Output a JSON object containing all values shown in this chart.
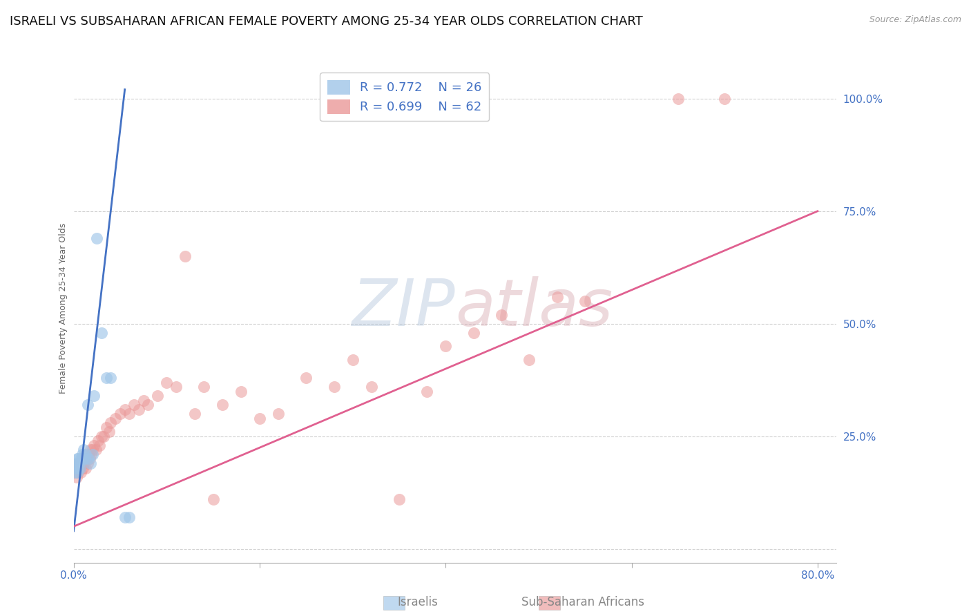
{
  "title": "ISRAELI VS SUBSAHARAN AFRICAN FEMALE POVERTY AMONG 25-34 YEAR OLDS CORRELATION CHART",
  "source": "Source: ZipAtlas.com",
  "ylabel": "Female Poverty Among 25-34 Year Olds",
  "xlim": [
    0.0,
    0.82
  ],
  "ylim": [
    -0.03,
    1.1
  ],
  "background_color": "#ffffff",
  "blue_color": "#9fc5e8",
  "pink_color": "#ea9999",
  "blue_line_color": "#4472c4",
  "pink_line_color": "#e06090",
  "tick_color": "#4472c4",
  "title_fontsize": 13,
  "axis_label_fontsize": 9,
  "tick_fontsize": 11,
  "legend_r1": "R = 0.772",
  "legend_n1": "N = 26",
  "legend_r2": "R = 0.699",
  "legend_n2": "N = 62",
  "israelis_x": [
    0.001,
    0.002,
    0.003,
    0.004,
    0.004,
    0.005,
    0.005,
    0.006,
    0.007,
    0.008,
    0.009,
    0.01,
    0.011,
    0.012,
    0.013,
    0.015,
    0.016,
    0.018,
    0.02,
    0.022,
    0.025,
    0.03,
    0.035,
    0.04,
    0.055,
    0.06
  ],
  "israelis_y": [
    0.17,
    0.18,
    0.19,
    0.17,
    0.2,
    0.18,
    0.2,
    0.19,
    0.18,
    0.2,
    0.21,
    0.2,
    0.22,
    0.2,
    0.21,
    0.32,
    0.2,
    0.19,
    0.21,
    0.34,
    0.69,
    0.48,
    0.38,
    0.38,
    0.07,
    0.07
  ],
  "subsaharan_x": [
    0.001,
    0.002,
    0.003,
    0.004,
    0.005,
    0.006,
    0.007,
    0.008,
    0.009,
    0.01,
    0.011,
    0.012,
    0.013,
    0.014,
    0.015,
    0.016,
    0.017,
    0.018,
    0.019,
    0.02,
    0.022,
    0.024,
    0.026,
    0.028,
    0.03,
    0.032,
    0.035,
    0.038,
    0.04,
    0.045,
    0.05,
    0.055,
    0.06,
    0.065,
    0.07,
    0.075,
    0.08,
    0.09,
    0.1,
    0.11,
    0.12,
    0.13,
    0.14,
    0.15,
    0.16,
    0.18,
    0.2,
    0.22,
    0.25,
    0.28,
    0.3,
    0.32,
    0.35,
    0.38,
    0.4,
    0.43,
    0.46,
    0.49,
    0.52,
    0.55,
    0.65,
    0.7
  ],
  "subsaharan_y": [
    0.17,
    0.18,
    0.16,
    0.19,
    0.17,
    0.18,
    0.19,
    0.17,
    0.2,
    0.18,
    0.19,
    0.2,
    0.18,
    0.2,
    0.19,
    0.21,
    0.2,
    0.22,
    0.21,
    0.22,
    0.23,
    0.22,
    0.24,
    0.23,
    0.25,
    0.25,
    0.27,
    0.26,
    0.28,
    0.29,
    0.3,
    0.31,
    0.3,
    0.32,
    0.31,
    0.33,
    0.32,
    0.34,
    0.37,
    0.36,
    0.65,
    0.3,
    0.36,
    0.11,
    0.32,
    0.35,
    0.29,
    0.3,
    0.38,
    0.36,
    0.42,
    0.36,
    0.11,
    0.35,
    0.45,
    0.48,
    0.52,
    0.42,
    0.56,
    0.55,
    1.0,
    1.0
  ],
  "blue_line_x": [
    0.0,
    0.055
  ],
  "blue_line_y": [
    0.04,
    1.02
  ],
  "pink_line_x": [
    0.0,
    0.8
  ],
  "pink_line_y": [
    0.05,
    0.75
  ]
}
